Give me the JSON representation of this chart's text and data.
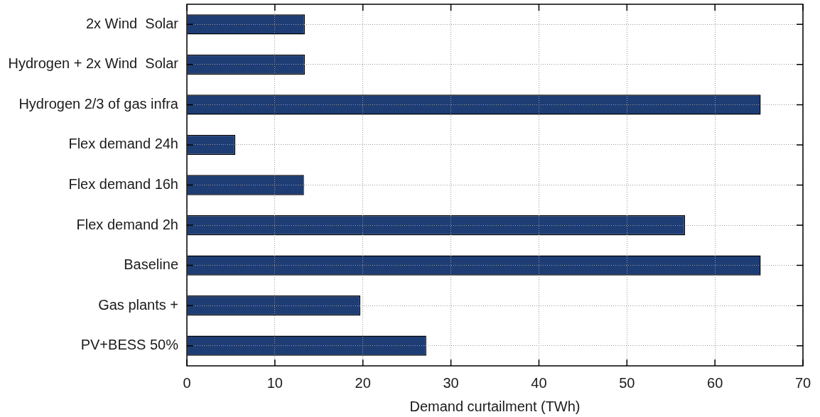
{
  "chart_data": {
    "type": "bar",
    "orientation": "horizontal",
    "xlabel": "Demand curtailment (TWh)",
    "categories": [
      "2x Wind  Solar",
      "Hydrogen + 2x Wind  Solar",
      "Hydrogen 2/3 of gas infra",
      "Flex demand 24h",
      "Flex demand 16h",
      "Flex demand 2h",
      "Baseline",
      "Gas plants +",
      "PV+BESS 50%"
    ],
    "values": [
      13.4,
      13.4,
      65.2,
      5.5,
      13.3,
      56.6,
      65.2,
      19.7,
      27.2
    ],
    "color": "#1e3d75",
    "xlim": [
      0,
      70
    ],
    "xticks": [
      0,
      10,
      20,
      30,
      40,
      50,
      60,
      70
    ],
    "grid": true
  }
}
